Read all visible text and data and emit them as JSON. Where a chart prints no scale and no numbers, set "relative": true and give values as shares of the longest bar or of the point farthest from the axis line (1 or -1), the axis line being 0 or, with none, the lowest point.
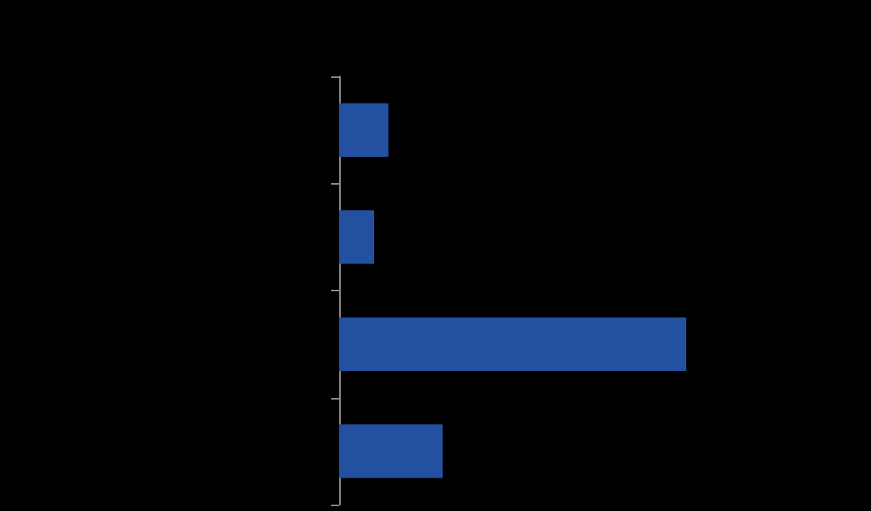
{
  "chart_data": {
    "type": "bar",
    "orientation": "horizontal",
    "relative": true,
    "categories": [
      null,
      null,
      null,
      null
    ],
    "values": [
      0.142,
      0.101,
      1,
      0.298
    ],
    "color": "#2350a0"
  }
}
